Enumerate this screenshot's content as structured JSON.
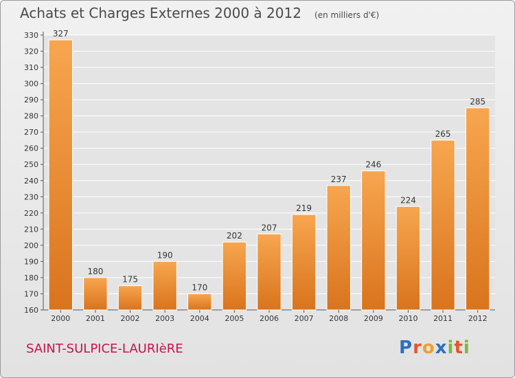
{
  "header": {
    "title": "Achats et Charges Externes 2000 à 2012",
    "unit": "(en milliers d'€)"
  },
  "footer": {
    "commune": "SAINT-SULPICE-LAURIèRE",
    "logo": [
      "P",
      "r",
      "o",
      "x",
      "i",
      "t",
      "i"
    ]
  },
  "colors": {
    "bar_light": "#f7a64f",
    "bar_dark": "#d9741d",
    "commune_text": "#c8114f"
  },
  "chart_data": {
    "type": "bar",
    "categories": [
      "2000",
      "2001",
      "2002",
      "2003",
      "2004",
      "2005",
      "2006",
      "2007",
      "2008",
      "2009",
      "2010",
      "2011",
      "2012"
    ],
    "values": [
      327,
      180,
      175,
      190,
      170,
      202,
      207,
      219,
      237,
      246,
      224,
      265,
      285
    ],
    "title": "Achats et Charges Externes 2000 à 2012",
    "ylim": [
      160,
      330
    ],
    "yticks": [
      160,
      170,
      180,
      190,
      200,
      210,
      220,
      230,
      240,
      250,
      260,
      270,
      280,
      290,
      300,
      310,
      320,
      330
    ],
    "grid": true
  }
}
